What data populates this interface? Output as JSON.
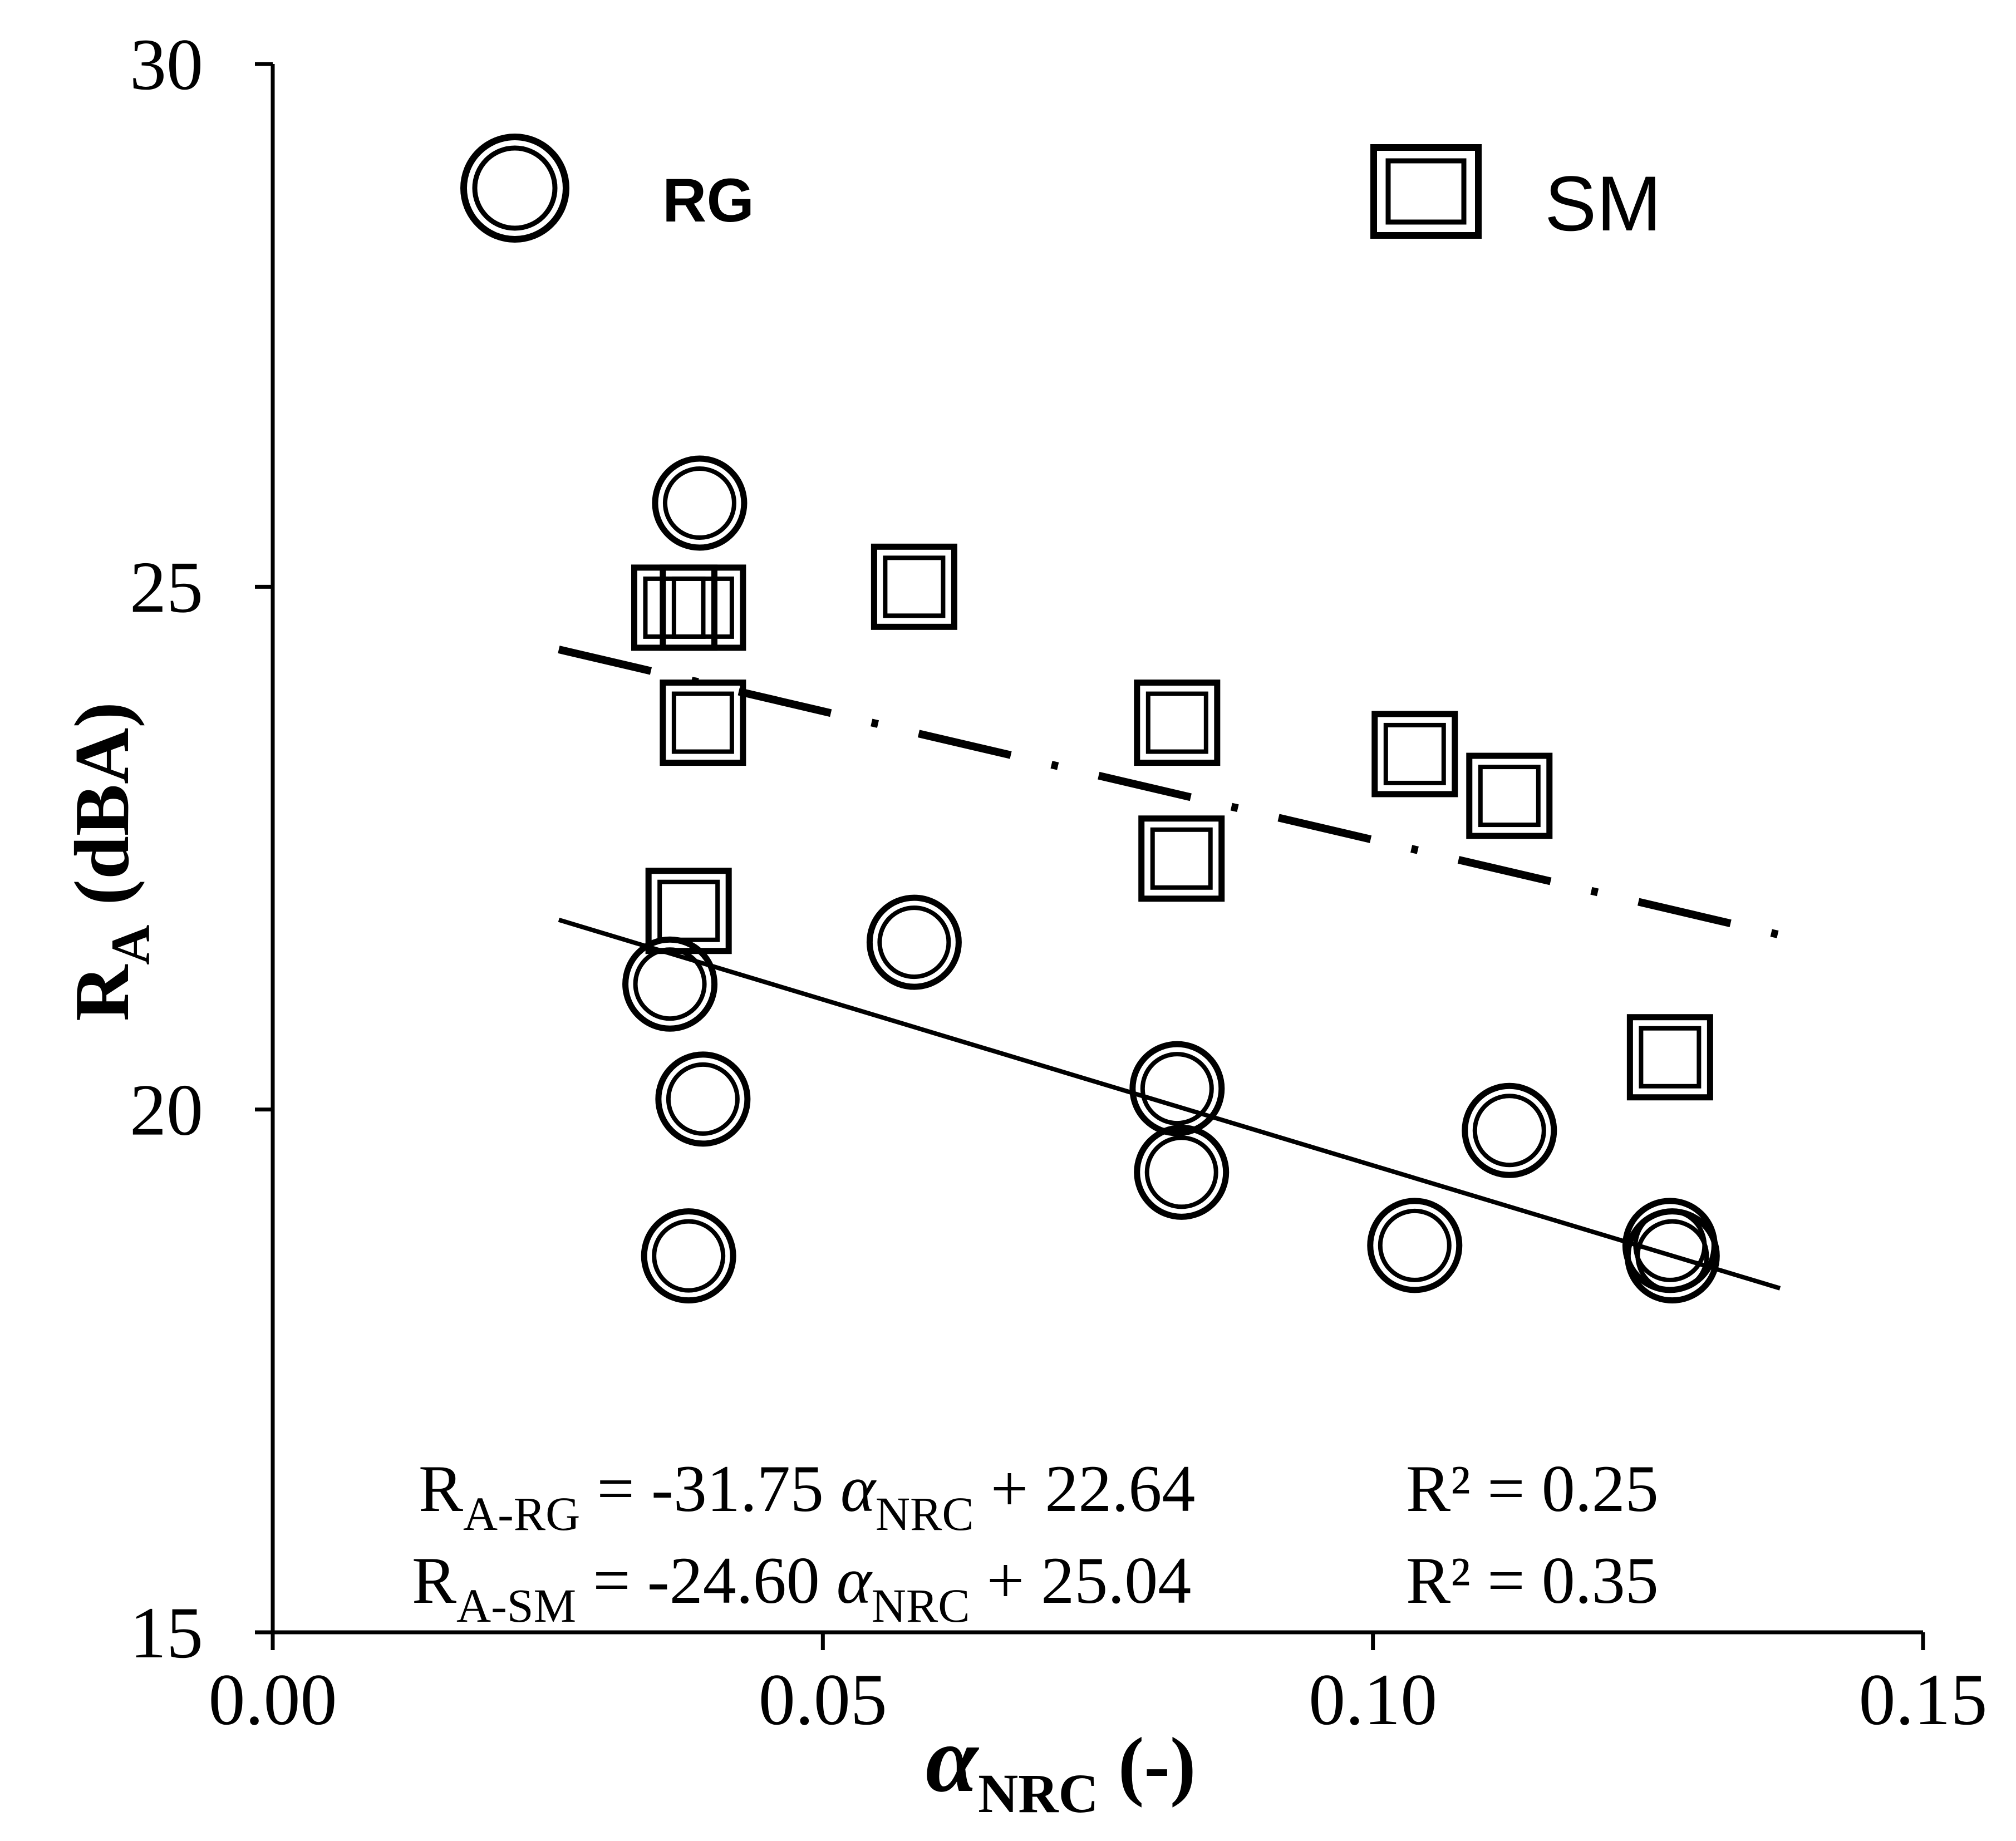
{
  "chart_data": {
    "type": "scatter",
    "title": "",
    "xlabel": {
      "main": "α",
      "sub": "NRC",
      "suffix": " (-)"
    },
    "ylabel": {
      "main": "R",
      "sub": "A",
      "suffix": " (dBA)"
    },
    "xlim": [
      0.0,
      0.15
    ],
    "ylim": [
      15,
      30
    ],
    "xticks": [
      0.0,
      0.05,
      0.1,
      0.15
    ],
    "xtick_labels": [
      "0.00",
      "0.05",
      "0.10",
      "0.15"
    ],
    "yticks": [
      15,
      20,
      25,
      30
    ],
    "ytick_labels": [
      "15",
      "20",
      "25",
      "30"
    ],
    "grid": false,
    "legend_position": "top",
    "series": [
      {
        "name": "RG",
        "marker": "double-circle",
        "color": "#000000",
        "x": [
          0.0388,
          0.0361,
          0.0391,
          0.0378,
          0.0583,
          0.0822,
          0.0826,
          0.1038,
          0.1124,
          0.127,
          0.1272
        ],
        "y": [
          25.8,
          21.2,
          20.1,
          18.6,
          21.6,
          20.2,
          19.4,
          18.7,
          19.8,
          18.7,
          18.6
        ]
      },
      {
        "name": "SM",
        "marker": "double-square",
        "color": "#000000",
        "x": [
          0.0365,
          0.0391,
          0.0391,
          0.0378,
          0.0583,
          0.0822,
          0.0826,
          0.1038,
          0.1124,
          0.127
        ],
        "y": [
          24.8,
          24.8,
          23.7,
          21.9,
          25.0,
          23.7,
          22.4,
          23.4,
          23.0,
          20.5
        ]
      }
    ],
    "fit_lines": [
      {
        "name": "RG fit",
        "slope": -31.75,
        "intercept": 22.64,
        "x_range": [
          0.026,
          0.137
        ],
        "style": "solid"
      },
      {
        "name": "SM fit",
        "slope": -24.6,
        "intercept": 25.04,
        "x_range": [
          0.026,
          0.137
        ],
        "style": "dash-dot"
      }
    ],
    "annotations": [
      {
        "lhs": "R",
        "lhs_sub": "A-RG",
        "rhs_pre": " = -31.75 ",
        "alpha": "α",
        "alpha_sub": "NRC",
        "rhs_post": " + 22.64",
        "r2": "R² = 0.25"
      },
      {
        "lhs": "R",
        "lhs_sub": "A-SM",
        "rhs_pre": " = -24.60 ",
        "alpha": "α",
        "alpha_sub": "NRC",
        "rhs_post": " + 25.04",
        "r2": "R² = 0.35"
      }
    ]
  }
}
